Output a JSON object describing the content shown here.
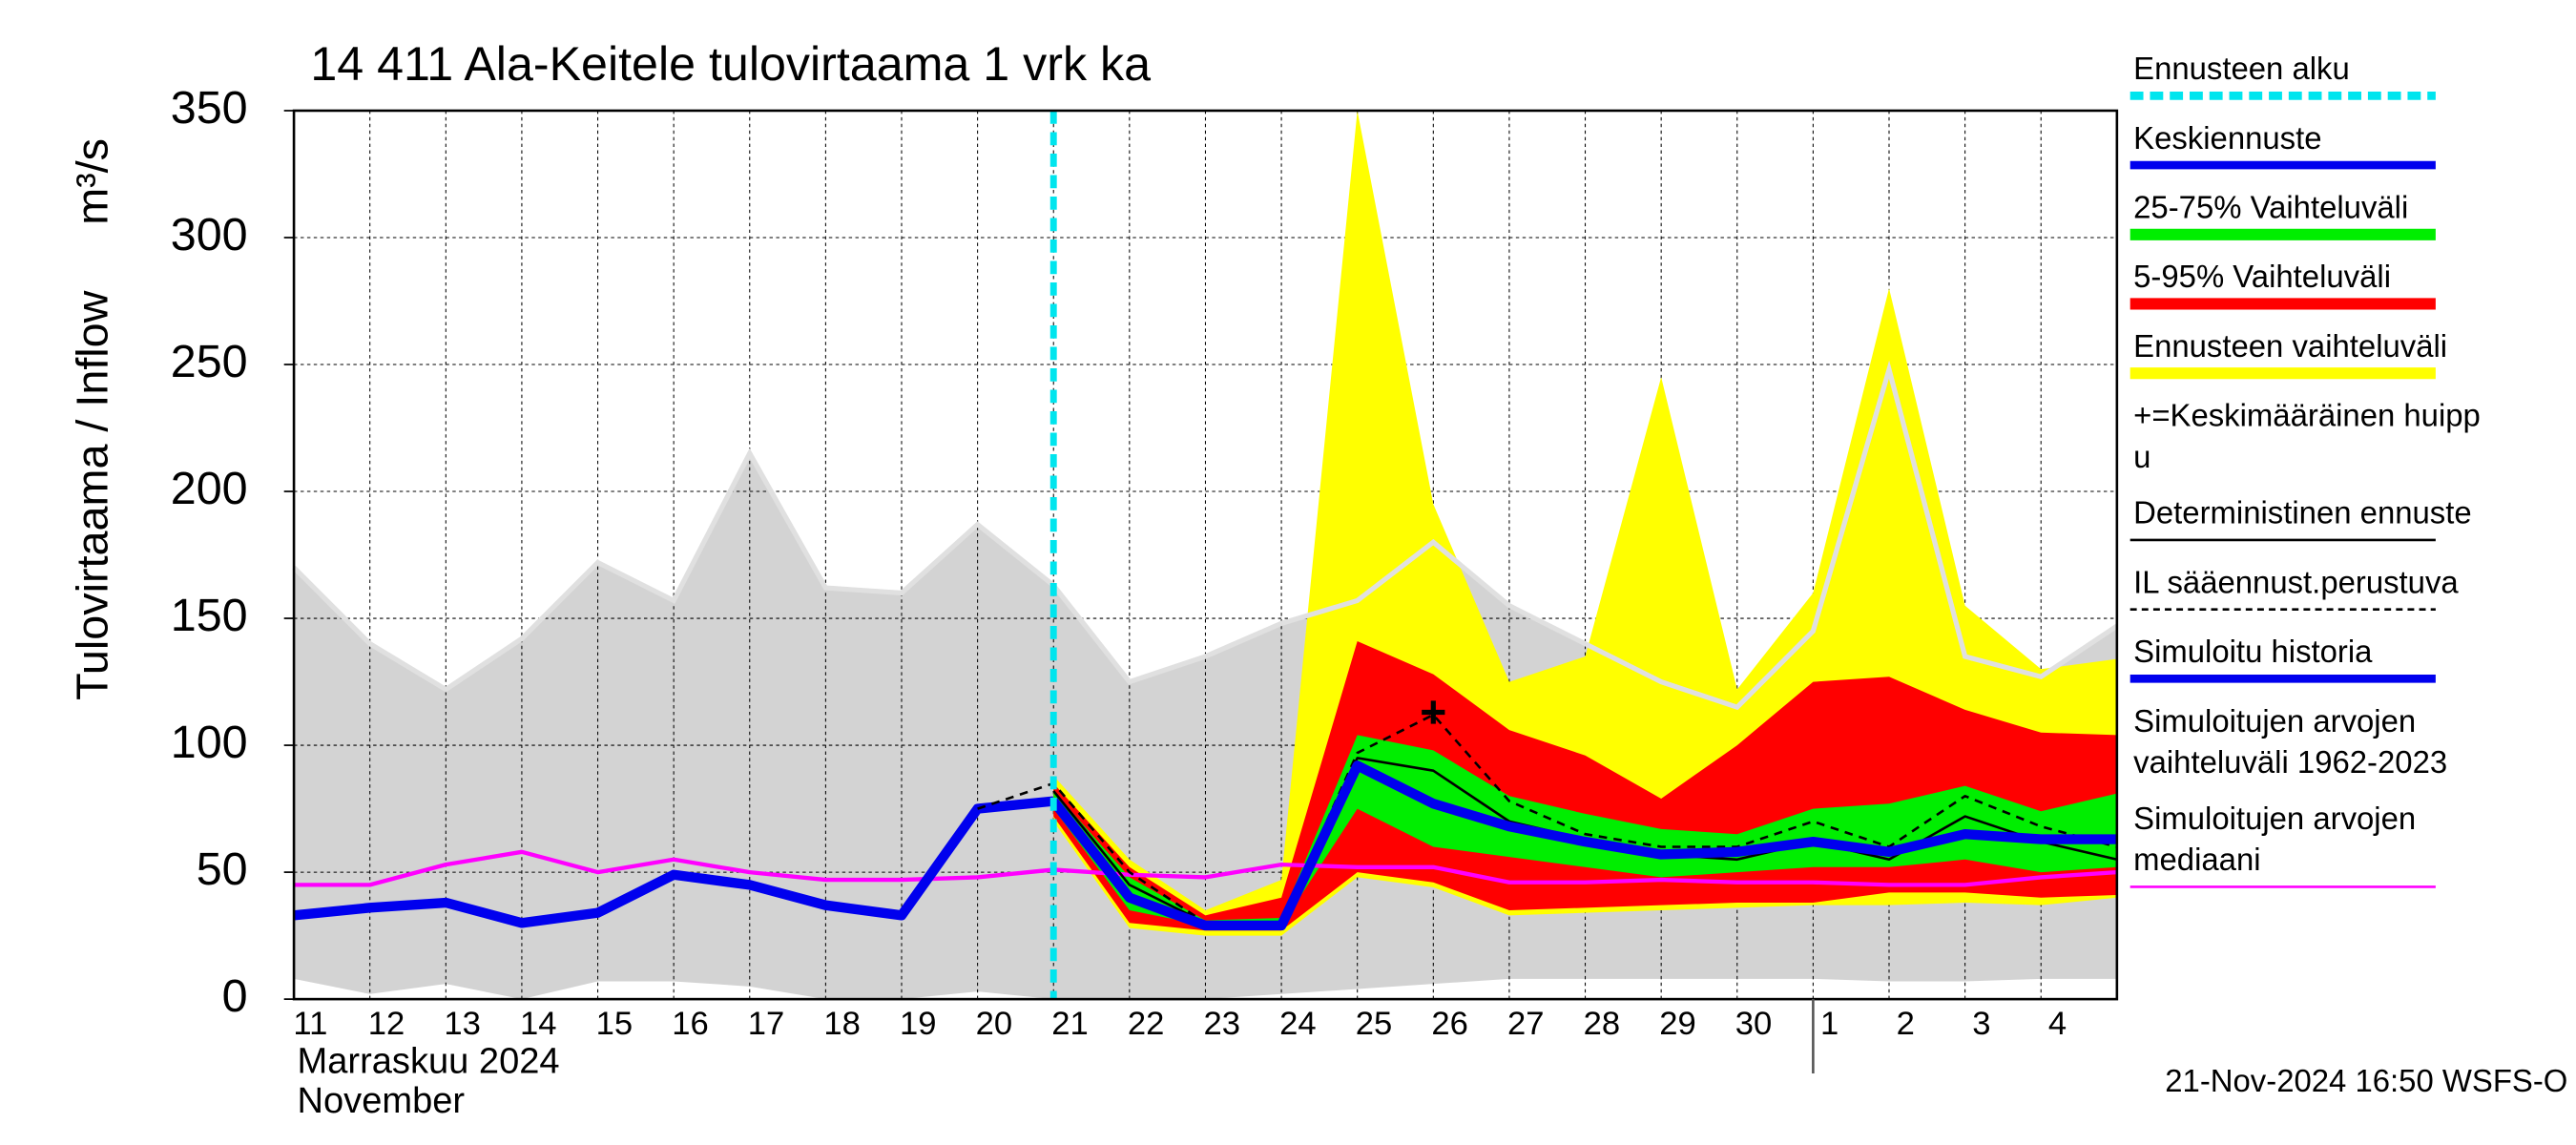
{
  "chart_data": {
    "type": "line",
    "title": "14 411 Ala-Keitele tulovirtaama 1 vrk ka",
    "y_label": "Tulovirtaama / Inflow",
    "y_unit": "m³/s",
    "x_label_lines": [
      "Marraskuu 2024",
      "November"
    ],
    "footer": "21-Nov-2024 16:50 WSFS-O",
    "categories": [
      "11",
      "12",
      "13",
      "14",
      "15",
      "16",
      "17",
      "18",
      "19",
      "20",
      "21",
      "22",
      "23",
      "24",
      "25",
      "26",
      "27",
      "28",
      "29",
      "30",
      "1",
      "2",
      "3",
      "4",
      null
    ],
    "ylim": [
      0,
      350
    ],
    "yticks": [
      0,
      50,
      100,
      150,
      200,
      250,
      300,
      350
    ],
    "grid": true,
    "series": [
      {
        "name": [
          "Ennusteen alku"
        ],
        "kind": "vline",
        "color": "#00e5ee",
        "x": "21"
      },
      {
        "name": [
          "Keskiennuste"
        ],
        "kind": "line",
        "color": "#0000ee",
        "width": 6,
        "values": [
          null,
          null,
          null,
          null,
          null,
          null,
          null,
          null,
          null,
          null,
          78,
          40,
          29,
          29,
          92,
          77,
          68,
          62,
          57,
          58,
          62,
          58,
          65,
          63,
          63
        ]
      },
      {
        "name": [
          "25-75% Vaihteluväli"
        ],
        "kind": "band",
        "color": "#00ee00",
        "low": [
          null,
          null,
          null,
          null,
          null,
          null,
          null,
          null,
          null,
          null,
          75,
          35,
          29,
          29,
          75,
          60,
          56,
          52,
          48,
          50,
          52,
          52,
          55,
          50,
          52
        ],
        "high": [
          null,
          null,
          null,
          null,
          null,
          null,
          null,
          null,
          null,
          null,
          82,
          48,
          31,
          32,
          104,
          98,
          80,
          73,
          67,
          65,
          75,
          77,
          84,
          74,
          81
        ]
      },
      {
        "name": [
          "5-95% Vaihteluväli"
        ],
        "kind": "band",
        "color": "#ff0000",
        "low": [
          null,
          null,
          null,
          null,
          null,
          null,
          null,
          null,
          null,
          null,
          72,
          30,
          27,
          27,
          50,
          46,
          35,
          36,
          37,
          38,
          38,
          42,
          42,
          40,
          41
        ],
        "high": [
          null,
          null,
          null,
          null,
          null,
          null,
          null,
          null,
          null,
          null,
          85,
          52,
          33,
          40,
          141,
          128,
          106,
          96,
          79,
          100,
          125,
          127,
          114,
          105,
          104
        ]
      },
      {
        "name": [
          "Ennusteen vaihteluväli"
        ],
        "kind": "band",
        "color": "#ffff00",
        "low": [
          null,
          null,
          null,
          null,
          null,
          null,
          null,
          null,
          null,
          null,
          70,
          28,
          25,
          25,
          48,
          44,
          33,
          34,
          35,
          36,
          37,
          37,
          38,
          37,
          40
        ],
        "high": [
          null,
          null,
          null,
          null,
          null,
          null,
          null,
          null,
          null,
          null,
          88,
          55,
          35,
          47,
          350,
          195,
          125,
          135,
          245,
          122,
          160,
          280,
          155,
          130,
          134
        ]
      },
      {
        "name": [
          "+=Keskimääräinen huipp",
          "u"
        ],
        "kind": "marker",
        "color": "#000000",
        "legend_line": false,
        "values": [
          null,
          null,
          null,
          null,
          null,
          null,
          null,
          null,
          null,
          null,
          null,
          null,
          null,
          null,
          null,
          113,
          null,
          null,
          null,
          null,
          null,
          null,
          null,
          null,
          null
        ]
      },
      {
        "name": [
          "Deterministinen ennuste"
        ],
        "kind": "line",
        "color": "#000000",
        "width": 1.5,
        "values": [
          null,
          null,
          null,
          null,
          null,
          null,
          null,
          null,
          null,
          null,
          82,
          45,
          30,
          30,
          95,
          90,
          70,
          63,
          57,
          55,
          62,
          55,
          72,
          62,
          55
        ]
      },
      {
        "name": [
          "IL sääennust.perustuva"
        ],
        "kind": "line",
        "color": "#000000",
        "width": 1.5,
        "dashed": true,
        "values": [
          null,
          null,
          null,
          null,
          null,
          null,
          null,
          null,
          null,
          75,
          85,
          50,
          30,
          30,
          97,
          112,
          78,
          65,
          60,
          60,
          70,
          60,
          80,
          68,
          60
        ]
      },
      {
        "name": [
          "Simuloitu historia"
        ],
        "kind": "line",
        "color": "#0000ee",
        "width": 6,
        "values": [
          33,
          36,
          38,
          30,
          34,
          49,
          45,
          37,
          33,
          75,
          78,
          null,
          null,
          null,
          null,
          null,
          null,
          null,
          null,
          null,
          null,
          null,
          null,
          null,
          null
        ]
      },
      {
        "name": [
          "Simuloitujen arvojen",
          "vaihteluväli 1962-2023"
        ],
        "kind": "band",
        "color": "#d3d3d3",
        "legend_line": false,
        "low": [
          8,
          2,
          6,
          0,
          7,
          7,
          5,
          0,
          0,
          3,
          0,
          0,
          0,
          2,
          4,
          6,
          8,
          8,
          8,
          8,
          8,
          7,
          7,
          8,
          8
        ],
        "high": [
          170,
          140,
          122,
          142,
          172,
          157,
          215,
          162,
          160,
          187,
          163,
          125,
          135,
          148,
          157,
          180,
          155,
          140,
          125,
          115,
          145,
          248,
          135,
          127,
          147
        ]
      },
      {
        "name": [
          "Simuloitujen arvojen",
          "mediaani"
        ],
        "kind": "line",
        "color": "#ff00ff",
        "width": 2.5,
        "values": [
          45,
          45,
          53,
          58,
          50,
          55,
          50,
          47,
          47,
          48,
          51,
          49,
          48,
          53,
          52,
          52,
          46,
          46,
          47,
          46,
          46,
          45,
          45,
          48,
          50
        ]
      }
    ]
  }
}
